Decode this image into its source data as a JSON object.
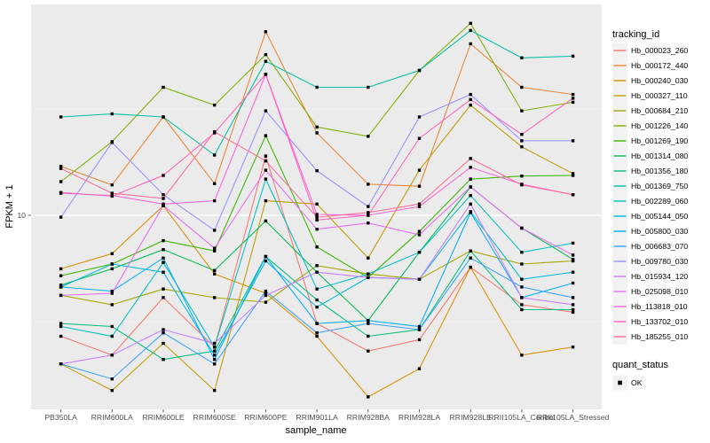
{
  "figure": {
    "background": "#FFFFFF",
    "panel_background": "#EBEBEB",
    "grid_color": "#FFFFFF",
    "point_color": "#000000"
  },
  "axes": {
    "x_title": "sample_name",
    "y_title": "FPKM + 1",
    "y_scale": "log10",
    "y_tick_labels": [
      "10"
    ]
  },
  "legend": {
    "tracking_title": "tracking_id",
    "quant_title": "quant_status",
    "quant_items": [
      {
        "label": "OK"
      }
    ]
  },
  "chart_data": {
    "type": "line",
    "title": "",
    "xlabel": "sample_name",
    "ylabel": "FPKM + 1",
    "y_scale": "log10",
    "ylim": [
      1.2,
      95
    ],
    "y_major_breaks": [
      10
    ],
    "y_minor_breaks": [
      3.162,
      31.62
    ],
    "grid": true,
    "legend_position": "right",
    "point_marker": {
      "shape": "small-black-square",
      "meaning": "quant_status = OK"
    },
    "categories": [
      "PB350LA",
      "RRIM600LA",
      "RRIM600LE",
      "RRIM600SE",
      "RRIM600PE",
      "RRIM901LA",
      "RRIM928BA",
      "RRIM928LA",
      "RRIM928LE",
      "RRII105LA_Control",
      "RRII105LA_Stressed"
    ],
    "series": [
      {
        "name": "Hb_000023_260",
        "color": "#F8766D",
        "values": [
          2.7,
          2.2,
          4.1,
          2.4,
          19,
          3.1,
          2.3,
          2.6,
          5.7,
          3.8,
          3.5
        ]
      },
      {
        "name": "Hb_000172_440",
        "color": "#EA8331",
        "values": [
          17,
          13.9,
          29,
          14.1,
          73,
          24.4,
          14,
          13.7,
          64,
          40,
          37
        ]
      },
      {
        "name": "Hb_000240_030",
        "color": "#D89000",
        "values": [
          5.6,
          6.6,
          11.1,
          5.3,
          4.3,
          2.7,
          1.4,
          1.9,
          5.7,
          2.2,
          2.4
        ]
      },
      {
        "name": "Hb_000327_110",
        "color": "#C09B00",
        "values": [
          2,
          1.5,
          2.5,
          1.5,
          11.7,
          11.3,
          6.3,
          16.3,
          33,
          21,
          15.7
        ]
      },
      {
        "name": "Hb_000684_210",
        "color": "#A3A500",
        "values": [
          4.2,
          3.8,
          4.5,
          4.1,
          3.9,
          5.8,
          5.3,
          5,
          6.8,
          5.9,
          6.1
        ]
      },
      {
        "name": "Hb_001226_140",
        "color": "#7CAE00",
        "values": [
          14.4,
          22.2,
          40,
          33,
          57,
          26,
          23.5,
          48,
          80,
          31,
          34
        ]
      },
      {
        "name": "Hb_001269_190",
        "color": "#39B600",
        "values": [
          5.2,
          5.9,
          7.6,
          6.8,
          23.7,
          7.1,
          5.1,
          8.4,
          14.8,
          15.3,
          15.4
        ]
      },
      {
        "name": "Hb_001314_080",
        "color": "#00BB4E",
        "values": [
          4.7,
          5.6,
          6.9,
          5.5,
          9.4,
          5.4,
          3.2,
          6.7,
          13.6,
          8.7,
          6.2
        ]
      },
      {
        "name": "Hb_001356_180",
        "color": "#00BF7D",
        "values": [
          3.1,
          3,
          2.1,
          2.3,
          6.4,
          4,
          2.7,
          2.9,
          6.8,
          3.6,
          3.6
        ]
      },
      {
        "name": "Hb_001369_750",
        "color": "#00C1A3",
        "values": [
          29,
          30,
          29,
          19.2,
          53,
          40,
          40,
          48,
          74,
          55,
          56
        ]
      },
      {
        "name": "Hb_002289_060",
        "color": "#00BFC4",
        "values": [
          3,
          2.7,
          6,
          2.4,
          14.8,
          4.5,
          5.3,
          6.7,
          12.4,
          6.7,
          7.4
        ]
      },
      {
        "name": "Hb_005144_050",
        "color": "#00BAE0",
        "values": [
          4.6,
          5.9,
          5.4,
          2.2,
          6.1,
          3.7,
          5.1,
          5,
          10.4,
          5,
          5.4
        ]
      },
      {
        "name": "Hb_005800_030",
        "color": "#00B0F6",
        "values": [
          4.6,
          4.4,
          6.3,
          2.1,
          6.4,
          3.1,
          3.2,
          3,
          10.3,
          4.1,
          4.8
        ]
      },
      {
        "name": "Hb_006683_070",
        "color": "#35A2FF",
        "values": [
          2,
          1.7,
          2.8,
          2,
          4.4,
          2.8,
          3.1,
          2.9,
          6.3,
          4.6,
          4.1
        ]
      },
      {
        "name": "Hb_009780_030",
        "color": "#9590FF",
        "values": [
          9.8,
          22,
          12.5,
          8.5,
          31,
          16.2,
          11,
          29,
          37,
          22.4,
          22.4
        ]
      },
      {
        "name": "Hb_015934_120",
        "color": "#C77CFF",
        "values": [
          2,
          2.2,
          2.9,
          2.5,
          4.2,
          5.4,
          5.1,
          5,
          11.3,
          4.1,
          3.8
        ]
      },
      {
        "name": "Hb_025098_010",
        "color": "#E76BF3",
        "values": [
          4.2,
          4.3,
          11.1,
          7,
          16.3,
          8.6,
          9.2,
          8.1,
          13.6,
          8.7,
          6.5
        ]
      },
      {
        "name": "Hb_113818_010",
        "color": "#FA62DB",
        "values": [
          12.7,
          12.4,
          11.3,
          11.7,
          46,
          10.1,
          10,
          11,
          16.8,
          14,
          12.5
        ]
      },
      {
        "name": "Hb_133702_010",
        "color": "#FF62BC",
        "values": [
          12.8,
          12.3,
          15.4,
          24.4,
          46,
          9.5,
          10,
          23,
          35,
          24,
          35.5
        ]
      },
      {
        "name": "Hb_185255_010",
        "color": "#FF6A98",
        "values": [
          16.6,
          12.7,
          12,
          24.7,
          18,
          9.8,
          10.3,
          11.3,
          18.5,
          13.9,
          12.5
        ]
      }
    ]
  }
}
